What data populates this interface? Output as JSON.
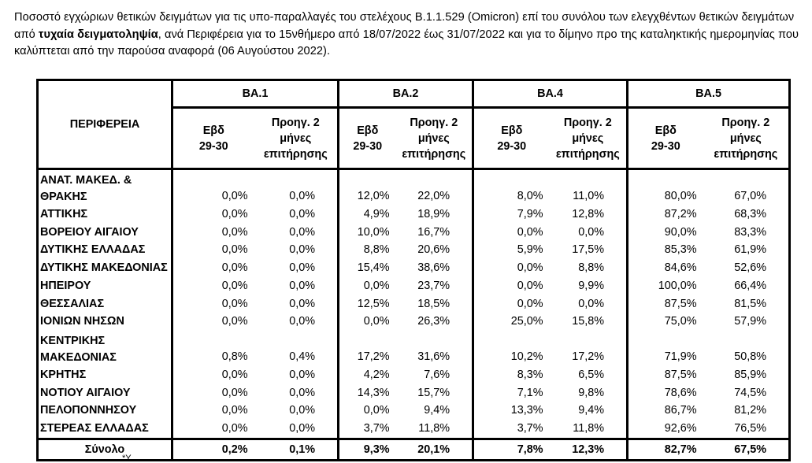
{
  "caption": {
    "part1": "Ποσοστό εγχώριων θετικών δειγμάτων για τις υπο-παραλλαγές του στελέχους Β.1.1.529 (Omicron) επί του συνόλου των ελεγχθέντων θετικών δειγμάτων από ",
    "bold": "τυχαία δειγματοληψία",
    "part2": ", ανά Περιφέρεια για το 15νθήμερο από 18/07/2022 έως 31/07/2022 και για το δίμηνο προ της καταληκτικής ημερομηνίας που καλύπτεται από την παρούσα αναφορά (06 Αυγούστου 2022)."
  },
  "table": {
    "region_header": "ΠΕΡΙΦΕΡΕΙΑ",
    "groups": [
      "BA.1",
      "BA.2",
      "BA.4",
      "BA.5"
    ],
    "sub_a": [
      "Εβδ",
      "29-30"
    ],
    "sub_b": [
      "Προηγ. 2",
      "μήνες",
      "επιτήρησης"
    ],
    "rows": [
      {
        "name": [
          "ΑΝΑΤ. ΜΑΚΕΔ. &",
          "ΘΡΑΚΗΣ"
        ],
        "values": [
          "0,0%",
          "0,0%",
          "12,0%",
          "22,0%",
          "8,0%",
          "11,0%",
          "80,0%",
          "67,0%"
        ]
      },
      {
        "name": [
          "ΑΤΤΙΚΗΣ"
        ],
        "values": [
          "0,0%",
          "0,0%",
          "4,9%",
          "18,9%",
          "7,9%",
          "12,8%",
          "87,2%",
          "68,3%"
        ]
      },
      {
        "name": [
          "ΒΟΡΕΙΟΥ ΑΙΓΑΙΟΥ"
        ],
        "values": [
          "0,0%",
          "0,0%",
          "10,0%",
          "16,7%",
          "0,0%",
          "0,0%",
          "90,0%",
          "83,3%"
        ]
      },
      {
        "name": [
          "ΔΥΤΙΚΗΣ ΕΛΛΑΔΑΣ"
        ],
        "values": [
          "0,0%",
          "0,0%",
          "8,8%",
          "20,6%",
          "5,9%",
          "17,5%",
          "85,3%",
          "61,9%"
        ]
      },
      {
        "name": [
          "ΔΥΤΙΚΗΣ ΜΑΚΕΔΟΝΙΑΣ"
        ],
        "values": [
          "0,0%",
          "0,0%",
          "15,4%",
          "38,6%",
          "0,0%",
          "8,8%",
          "84,6%",
          "52,6%"
        ]
      },
      {
        "name": [
          "ΗΠΕΙΡΟΥ"
        ],
        "values": [
          "0,0%",
          "0,0%",
          "0,0%",
          "23,7%",
          "0,0%",
          "9,9%",
          "100,0%",
          "66,4%"
        ]
      },
      {
        "name": [
          "ΘΕΣΣΑΛΙΑΣ"
        ],
        "values": [
          "0,0%",
          "0,0%",
          "12,5%",
          "18,5%",
          "0,0%",
          "0,0%",
          "87,5%",
          "81,5%"
        ]
      },
      {
        "name": [
          "ΙΟΝΙΩΝ ΝΗΣΩΝ"
        ],
        "values": [
          "0,0%",
          "0,0%",
          "0,0%",
          "26,3%",
          "25,0%",
          "15,8%",
          "75,0%",
          "57,9%"
        ]
      },
      {
        "name": [
          "ΚΕΝΤΡΙΚΗΣ",
          "ΜΑΚΕΔΟΝΙΑΣ"
        ],
        "values": [
          "0,8%",
          "0,4%",
          "17,2%",
          "31,6%",
          "10,2%",
          "17,2%",
          "71,9%",
          "50,8%"
        ]
      },
      {
        "name": [
          "ΚΡΗΤΗΣ"
        ],
        "values": [
          "0,0%",
          "0,0%",
          "4,2%",
          "7,6%",
          "8,3%",
          "6,5%",
          "87,5%",
          "85,9%"
        ]
      },
      {
        "name": [
          "ΝΟΤΙΟΥ ΑΙΓΑΙΟΥ"
        ],
        "values": [
          "0,0%",
          "0,0%",
          "14,3%",
          "15,7%",
          "7,1%",
          "9,8%",
          "78,6%",
          "74,5%"
        ]
      },
      {
        "name": [
          "ΠΕΛΟΠΟΝΝΗΣΟΥ"
        ],
        "values": [
          "0,0%",
          "0,0%",
          "0,0%",
          "9,4%",
          "13,3%",
          "9,4%",
          "86,7%",
          "81,2%"
        ]
      },
      {
        "name": [
          "ΣΤΕΡΕΑΣ ΕΛΛΑΔΑΣ"
        ],
        "values": [
          "0,0%",
          "0,0%",
          "3,7%",
          "11,8%",
          "3,7%",
          "11,8%",
          "92,6%",
          "76,5%"
        ]
      }
    ],
    "total": {
      "name": "Σύνολο",
      "values": [
        "0,2%",
        "0,1%",
        "9,3%",
        "20,1%",
        "7,8%",
        "12,3%",
        "82,7%",
        "67,5%"
      ]
    }
  },
  "footnote": "*Υ......................................................................................................................."
}
